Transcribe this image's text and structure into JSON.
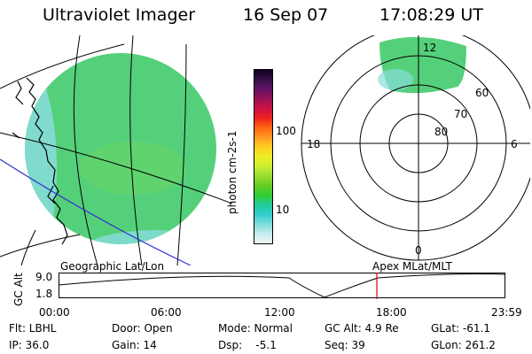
{
  "header": {
    "instrument": "Ultraviolet Imager",
    "date": "16 Sep 07",
    "time": "17:08:29 UT"
  },
  "colorbar": {
    "unit_label": "photon cm-2s-1",
    "tick_100": "100",
    "tick_10": "10",
    "stops": [
      "#eef8f8",
      "#c6ecec",
      "#7fdcdc",
      "#33cccc",
      "#22cc99",
      "#33cc33",
      "#66cc22",
      "#99dd33",
      "#ccee33",
      "#eeee22",
      "#ffcc22",
      "#ff9922",
      "#ff6611",
      "#ee2222",
      "#cc1144",
      "#991155",
      "#661166",
      "#331144",
      "#110022"
    ]
  },
  "geo_panel": {
    "label": "Geographic Lat/Lon",
    "fill_color": "#55d07a",
    "edge_color": "#88dddd",
    "coast_color": "#000000",
    "grid_color": "#000000",
    "track_color": "#3333cc"
  },
  "polar_panel": {
    "label": "Apex  MLat/MLT",
    "mlt_labels": {
      "top": "12",
      "left": "18",
      "right": "6",
      "bottom": "0"
    },
    "lat_labels": [
      "60",
      "70",
      "80"
    ],
    "fill_color": "#55d07a"
  },
  "altitude_plot": {
    "ylabel": "GC Alt",
    "y_top": "9.0",
    "y_bottom": "1.8",
    "time_ticks": [
      "00:00",
      "06:00",
      "12:00",
      "18:00",
      "23:59"
    ],
    "current_marker_color": "#dd0000"
  },
  "info": {
    "flt": "Flt: LBHL",
    "ip": "IP: 36.0",
    "door": "Door: Open",
    "gain": "Gain: 14",
    "mode": "Mode: Normal",
    "dsp": "Dsp:    -5.1",
    "gcalt": "GC Alt: 4.9 Re",
    "seq": "Seq: 39",
    "glat": "GLat: -61.1",
    "glon": "GLon: 261.2"
  }
}
